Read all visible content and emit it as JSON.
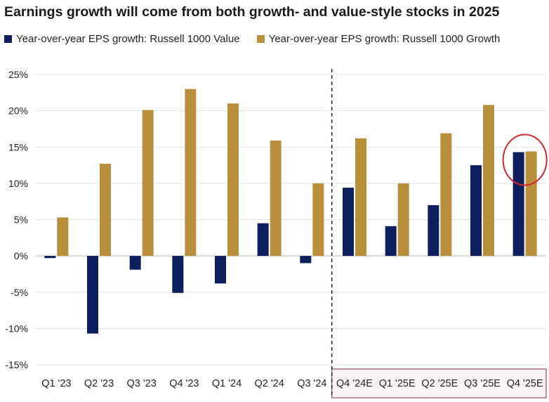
{
  "chart_data": {
    "type": "bar",
    "title": "Earnings growth will come from both growth- and value-style stocks in 2025",
    "xlabel": "",
    "ylabel": "",
    "categories": [
      "Q1 '23",
      "Q2 '23",
      "Q3 '23",
      "Q4 '23",
      "Q1 '24",
      "Q2 '24",
      "Q3 '24",
      "Q4 '24E",
      "Q1 '25E",
      "Q2 '25E",
      "Q3 '25E",
      "Q4 '25E"
    ],
    "series": [
      {
        "name": "Year-over-year EPS growth: Russell 1000 Value",
        "color": "#0d1f5c",
        "values": [
          -0.3,
          -10.7,
          -1.9,
          -5.1,
          -3.8,
          4.5,
          -1.0,
          9.4,
          4.1,
          7.0,
          12.5,
          14.3
        ]
      },
      {
        "name": "Year-over-year EPS growth: Russell 1000 Growth",
        "color": "#b98f3c",
        "values": [
          5.3,
          12.7,
          20.1,
          23.0,
          21.0,
          15.9,
          10.0,
          16.2,
          10.0,
          16.9,
          20.8,
          14.4
        ]
      }
    ],
    "ylim": [
      -15,
      25
    ],
    "yticks": [
      -15,
      -10,
      -5,
      0,
      5,
      10,
      15,
      20,
      25
    ],
    "ytick_labels": [
      "-15%",
      "-10%",
      "-5%",
      "0%",
      "5%",
      "10%",
      "15%",
      "20%",
      "25%"
    ],
    "grid": true,
    "legend_position": "top-left",
    "annotations": {
      "forecast_divider_after": "Q3 '24",
      "highlight_circle_category": "Q4 '25E",
      "highlight_color": "#d9262b",
      "forecast_box_color": "#8a2b3f"
    }
  }
}
